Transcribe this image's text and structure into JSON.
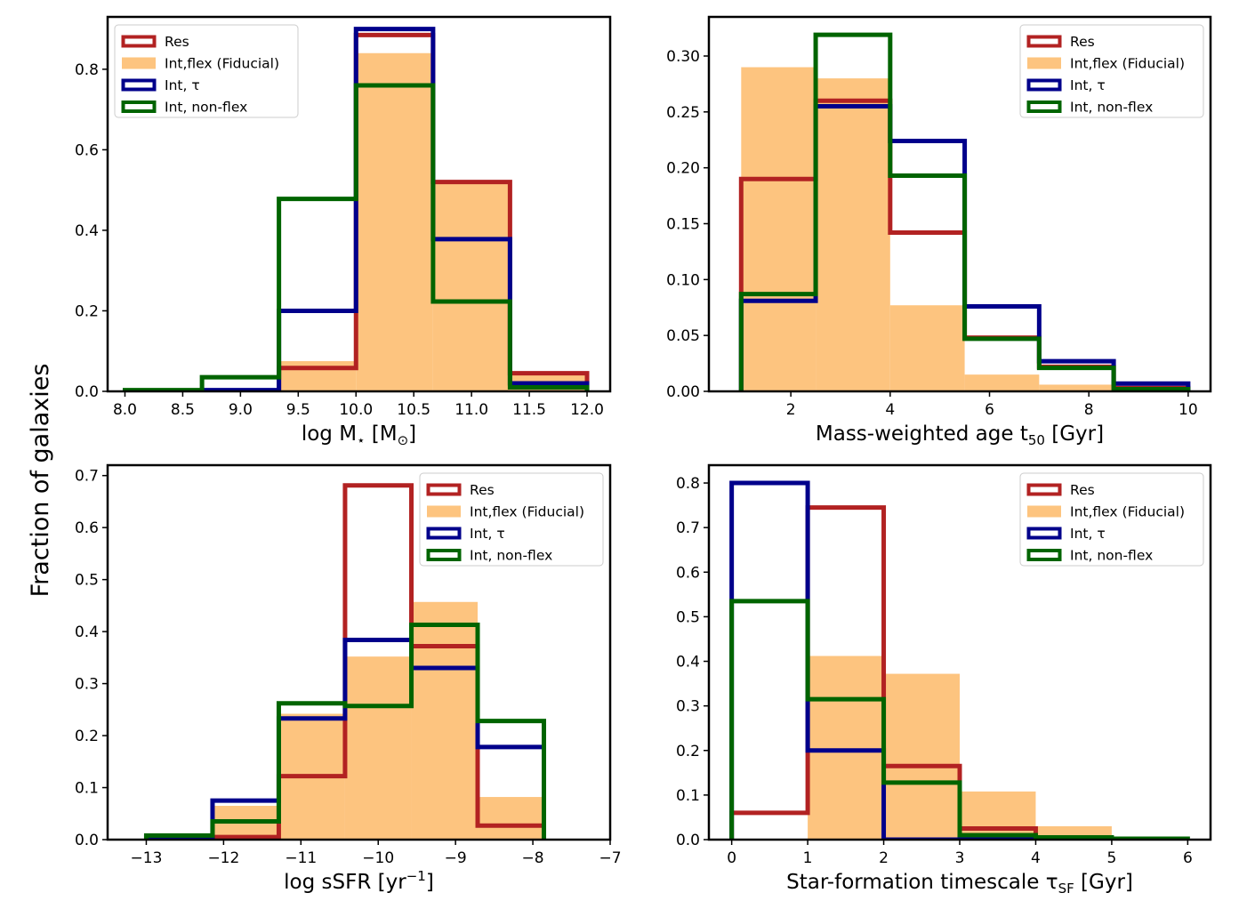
{
  "figure": {
    "ylabel": "Fraction of galaxies"
  },
  "colors": {
    "res": "#b22222",
    "int_flex": "#fdc47f",
    "int_tau": "#00008b",
    "int_nonflex": "#006400",
    "axis": "#000000"
  },
  "chart_data": [
    {
      "type": "bar",
      "subtype": "histogram",
      "xlabel_main": "log M",
      "xlabel_sub": "⋆",
      "xlabel_rest": " [M",
      "xlabel_sub2": "⊙",
      "xlabel_end": "]",
      "xlim": [
        7.85,
        12.2
      ],
      "ylim": [
        0,
        0.93
      ],
      "xticks": [
        8.0,
        8.5,
        9.0,
        9.5,
        10.0,
        10.5,
        11.0,
        11.5,
        12.0
      ],
      "xtick_labels": [
        "8.0",
        "8.5",
        "9.0",
        "9.5",
        "10.0",
        "10.5",
        "11.0",
        "11.5",
        "12.0"
      ],
      "yticks": [
        0.0,
        0.2,
        0.4,
        0.6,
        0.8
      ],
      "ytick_labels": [
        "0.0",
        "0.2",
        "0.4",
        "0.6",
        "0.8"
      ],
      "bin_edges": [
        8.0,
        8.667,
        9.333,
        10.0,
        10.667,
        11.333,
        12.0
      ],
      "legend_position": "upper-left",
      "series": [
        {
          "key": "int_flex",
          "name": "Int,flex (Fiducial)",
          "style": "filled",
          "values": [
            0.0,
            0.0,
            0.075,
            0.84,
            0.52,
            0.04
          ]
        },
        {
          "key": "res",
          "name": "Res",
          "style": "step",
          "values": [
            0.0,
            0.0,
            0.058,
            0.885,
            0.52,
            0.045
          ]
        },
        {
          "key": "int_tau",
          "name": "Int, τ",
          "style": "step",
          "values": [
            0.0,
            0.003,
            0.2,
            0.9,
            0.378,
            0.02
          ]
        },
        {
          "key": "int_nonflex",
          "name": "Int, non-flex",
          "style": "step",
          "values": [
            0.003,
            0.035,
            0.478,
            0.76,
            0.223,
            0.01
          ]
        }
      ]
    },
    {
      "type": "bar",
      "subtype": "histogram",
      "xlabel_main": "Mass-weighted age t",
      "xlabel_sub": "50",
      "xlabel_rest": " [Gyr]",
      "xlabel_sub2": "",
      "xlabel_end": "",
      "xlim": [
        0.35,
        10.45
      ],
      "ylim": [
        0,
        0.335
      ],
      "xticks": [
        2,
        4,
        6,
        8,
        10
      ],
      "xtick_labels": [
        "2",
        "4",
        "6",
        "8",
        "10"
      ],
      "yticks": [
        0.0,
        0.05,
        0.1,
        0.15,
        0.2,
        0.25,
        0.3
      ],
      "ytick_labels": [
        "0.00",
        "0.05",
        "0.10",
        "0.15",
        "0.20",
        "0.25",
        "0.30"
      ],
      "bin_edges": [
        1.0,
        2.5,
        4.0,
        5.5,
        7.0,
        8.5,
        10.0
      ],
      "legend_position": "upper-right",
      "series": [
        {
          "key": "int_flex",
          "name": "Int,flex (Fiducial)",
          "style": "filled",
          "values": [
            0.29,
            0.28,
            0.077,
            0.015,
            0.006,
            0.0
          ]
        },
        {
          "key": "res",
          "name": "Res",
          "style": "step",
          "values": [
            0.19,
            0.26,
            0.142,
            0.048,
            0.022,
            0.003
          ]
        },
        {
          "key": "int_tau",
          "name": "Int, τ",
          "style": "step",
          "values": [
            0.081,
            0.255,
            0.224,
            0.076,
            0.027,
            0.007
          ]
        },
        {
          "key": "int_nonflex",
          "name": "Int, non-flex",
          "style": "step",
          "values": [
            0.087,
            0.319,
            0.193,
            0.047,
            0.021,
            0.002
          ]
        }
      ]
    },
    {
      "type": "bar",
      "subtype": "histogram",
      "xlabel_main": "log sSFR [yr",
      "xlabel_sub": "",
      "xlabel_sup": "−1",
      "xlabel_rest": "]",
      "xlabel_sub2": "",
      "xlabel_end": "",
      "xlim": [
        -13.5,
        -7.0
      ],
      "ylim": [
        0,
        0.72
      ],
      "xticks": [
        -13,
        -12,
        -11,
        -10,
        -9,
        -8,
        -7
      ],
      "xtick_labels": [
        "−13",
        "−12",
        "−11",
        "−10",
        "−9",
        "−8",
        "−7"
      ],
      "yticks": [
        0.0,
        0.1,
        0.2,
        0.3,
        0.4,
        0.5,
        0.6,
        0.7
      ],
      "ytick_labels": [
        "0.0",
        "0.1",
        "0.2",
        "0.3",
        "0.4",
        "0.5",
        "0.6",
        "0.7"
      ],
      "bin_edges": [
        -13.0,
        -12.143,
        -11.286,
        -10.429,
        -9.571,
        -8.714,
        -7.857
      ],
      "legend_position": "upper-right",
      "series": [
        {
          "key": "int_flex",
          "name": "Int,flex (Fiducial)",
          "style": "filled",
          "values": [
            0.0,
            0.065,
            0.242,
            0.352,
            0.457,
            0.082
          ]
        },
        {
          "key": "res",
          "name": "Res",
          "style": "step",
          "values": [
            0.0,
            0.005,
            0.122,
            0.681,
            0.372,
            0.027
          ]
        },
        {
          "key": "int_tau",
          "name": "Int, τ",
          "style": "step",
          "values": [
            0.005,
            0.075,
            0.233,
            0.384,
            0.33,
            0.178
          ]
        },
        {
          "key": "int_nonflex",
          "name": "Int, non-flex",
          "style": "step",
          "values": [
            0.008,
            0.035,
            0.262,
            0.257,
            0.413,
            0.228
          ]
        }
      ]
    },
    {
      "type": "bar",
      "subtype": "histogram",
      "xlabel_main": "Star-formation timescale τ",
      "xlabel_sub": "SF",
      "xlabel_rest": " [Gyr]",
      "xlabel_sub2": "",
      "xlabel_end": "",
      "xlim": [
        -0.3,
        6.3
      ],
      "ylim": [
        0,
        0.84
      ],
      "xticks": [
        0,
        1,
        2,
        3,
        4,
        5,
        6
      ],
      "xtick_labels": [
        "0",
        "1",
        "2",
        "3",
        "4",
        "5",
        "6"
      ],
      "yticks": [
        0.0,
        0.1,
        0.2,
        0.3,
        0.4,
        0.5,
        0.6,
        0.7,
        0.8
      ],
      "ytick_labels": [
        "0.0",
        "0.1",
        "0.2",
        "0.3",
        "0.4",
        "0.5",
        "0.6",
        "0.7",
        "0.8"
      ],
      "bin_edges": [
        0,
        1,
        2,
        3,
        4,
        5,
        6
      ],
      "legend_position": "upper-right",
      "series": [
        {
          "key": "int_flex",
          "name": "Int,flex (Fiducial)",
          "style": "filled",
          "values": [
            0.0,
            0.412,
            0.372,
            0.108,
            0.03,
            0.002
          ]
        },
        {
          "key": "res",
          "name": "Res",
          "style": "step",
          "values": [
            0.06,
            0.745,
            0.165,
            0.025,
            0.0,
            0.0
          ]
        },
        {
          "key": "int_tau",
          "name": "Int, τ",
          "style": "step",
          "values": [
            0.8,
            0.2,
            0.0,
            0.0,
            0.0,
            0.0
          ]
        },
        {
          "key": "int_nonflex",
          "name": "Int, non-flex",
          "style": "step",
          "values": [
            0.535,
            0.315,
            0.128,
            0.01,
            0.005,
            0.002
          ]
        }
      ]
    }
  ]
}
